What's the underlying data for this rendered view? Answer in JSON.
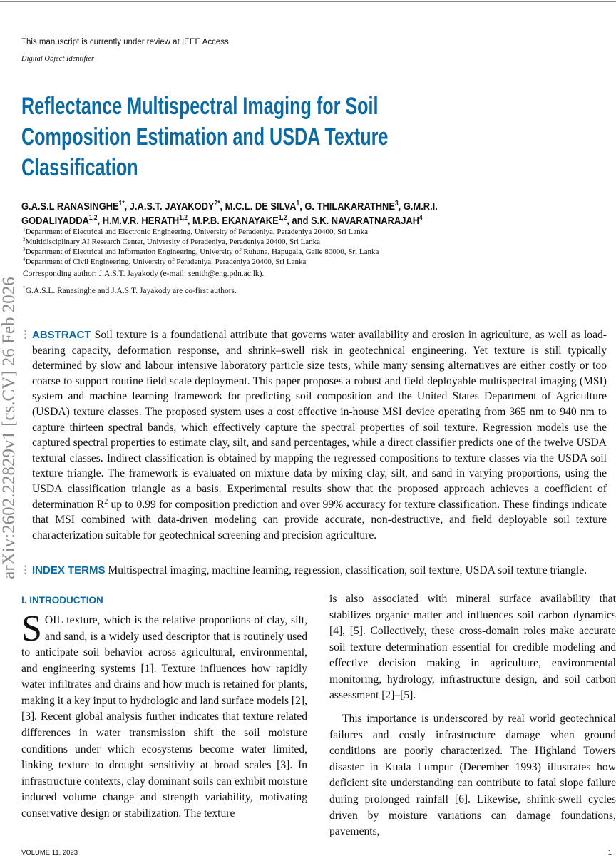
{
  "header": {
    "review_note": "This manuscript is currently under review at IEEE Access",
    "doi_label": "Digital Object Identifier"
  },
  "title_lines": [
    "Reflectance Multispectral Imaging for Soil",
    "Composition Estimation and USDA Texture",
    "Classification"
  ],
  "authors": {
    "line1": [
      {
        "name": "G.A.S.L RANASINGHE",
        "sup": "1*",
        "sep": ", "
      },
      {
        "name": "J.A.S.T. JAYAKODY",
        "sup": "2*",
        "sep": ", "
      },
      {
        "name": "M.C.L. DE SILVA",
        "sup": "1",
        "sep": ", "
      },
      {
        "name": "G. THILAKARATHNE",
        "sup": "3",
        "sep": ", "
      },
      {
        "name": "G.M.R.I.",
        "sup": "",
        "sep": ""
      }
    ],
    "line2": [
      {
        "name": "GODALIYADDA",
        "sup": "1,2",
        "sep": ", "
      },
      {
        "name": "H.M.V.R. HERATH",
        "sup": "1,2",
        "sep": ", "
      },
      {
        "name": "M.P.B. EKANAYAKE",
        "sup": "1,2",
        "sep": ", and "
      },
      {
        "name": "S.K. NAVARATNARAJAH",
        "sup": "4",
        "sep": ""
      }
    ]
  },
  "affiliations": [
    {
      "num": "1",
      "text": "Department of Electrical and Electronic Engineering, University of Peradeniya, Peradeniya 20400, Sri Lanka"
    },
    {
      "num": "2",
      "text": "Multidisciplinary AI Research Center, University of Peradeniya, Peradeniya 20400, Sri Lanka"
    },
    {
      "num": "3",
      "text": "Department of Electrical and Information Engineering, University of Ruhuna, Hapugala, Galle 80000, Sri Lanka"
    },
    {
      "num": "4",
      "text": "Department of Civil Engineering, University of Peradeniya, Peradeniya 20400, Sri Lanka"
    }
  ],
  "corresponding": "Corresponding author: J.A.S.T. Jayakody (e-mail: senith@eng.pdn.ac.lk).",
  "cofirst": {
    "mark": "*",
    "text": "G.A.S.L. Ranasinghe and J.A.S.T. Jayakody are co-first authors."
  },
  "arxiv_stamp": "arXiv:2602.22829v1  [cs.CV]  26 Feb 2026",
  "abstract": {
    "heading": "ABSTRACT",
    "text_a": "Soil texture is a foundational attribute that governs water availability and erosion in agriculture, as well as load-bearing capacity, deformation response, and shrink–swell risk in geotechnical engineering. Yet texture is still typically determined by slow and labour intensive laboratory particle size tests, while many sensing alternatives are either costly or too coarse to support routine field scale deployment. This paper proposes a robust and field deployable multispectral imaging (MSI) system and machine learning framework for predicting soil composition and the United States Department of Agriculture (USDA) texture classes. The proposed system uses a cost effective in-house MSI device operating from 365 nm to 940 nm to capture thirteen spectral bands, which effectively capture the spectral properties of soil texture. Regression models use the captured spectral properties to estimate clay, silt, and sand percentages, while a direct classifier predicts one of the twelve USDA textural classes. Indirect classification is obtained by mapping the regressed compositions to texture classes via the USDA soil texture triangle. The framework is evaluated on mixture data by mixing clay, silt, and sand in varying proportions, using the USDA classification triangle as a basis. Experimental results show that the proposed approach achieves a coefficient of determination R",
    "sup": "2",
    "text_b": " up to 0.99 for composition prediction and over 99% accuracy for texture classification. These findings indicate that MSI combined with data-driven modeling can provide accurate, non-destructive, and field deployable soil texture characterization suitable for geotechnical screening and precision agriculture."
  },
  "index_terms": {
    "heading": "INDEX TERMS",
    "text": "Multispectral imaging, machine learning, regression, classification, soil texture, USDA soil texture triangle."
  },
  "introduction": {
    "heading": "I. INTRODUCTION",
    "drop_cap": "S",
    "left_text": "OIL texture, which is the relative proportions of clay, silt, and sand, is a widely used descriptor that is routinely used to anticipate soil behavior across agricultural, environmental, and engineering systems [1]. Texture influences how rapidly water infiltrates and drains and how much is retained for plants, making it a key input to hydrologic and land surface models [2], [3]. Recent global analysis further indicates that texture related differences in water transmission shift the soil moisture conditions under which ecosystems become water limited, linking texture to drought sensitivity at broad scales [3]. In infrastructure contexts, clay dominant soils can exhibit moisture induced volume change and strength variability, motivating conservative design or stabilization. The texture",
    "right_p1": "is also associated with mineral surface availability that stabilizes organic matter and influences soil carbon dynamics [4], [5]. Collectively, these cross-domain roles make accurate soil texture determination essential for credible modeling and effective decision making in agriculture, environmental monitoring, hydrology, infrastructure design, and soil carbon assessment [2]–[5].",
    "right_p2": "This importance is underscored by real world geotechnical failures and costly infrastructure damage when ground conditions are poorly characterized. The Highland Towers disaster in Kuala Lumpur (December 1993) illustrates how deficient site understanding can contribute to fatal slope failure during prolonged rainfall [6]. Likewise, shrink-swell cycles driven by moisture variations can damage foundations, pavements,"
  },
  "footer": {
    "volume": "VOLUME 11, 2023",
    "page": "1"
  },
  "colors": {
    "accent": "#0b6aa4",
    "stamp": "#8a8a8a"
  }
}
